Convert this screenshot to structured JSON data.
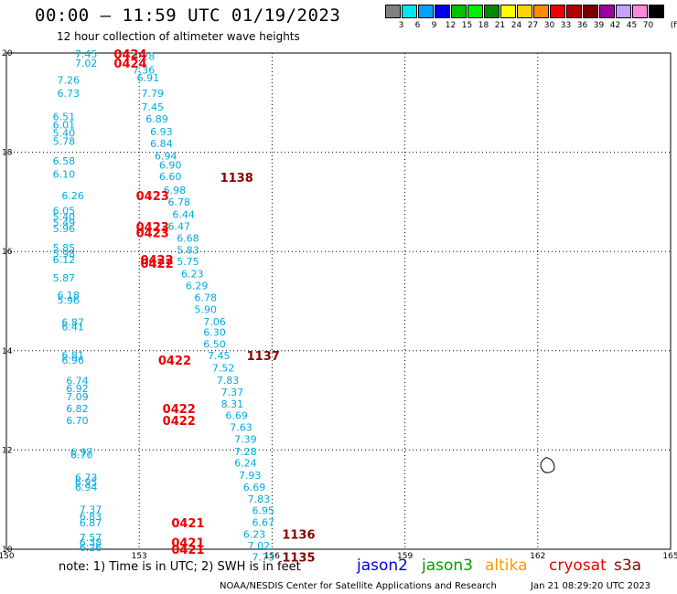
{
  "header": {
    "title": "00:00 – 11:59 UTC 01/19/2023",
    "subtitle": "12 hour collection of altimeter wave heights"
  },
  "scale": {
    "unit": "(ft)",
    "bins": [
      {
        "label": "3",
        "color": "#808080"
      },
      {
        "label": "6",
        "color": "#00e5ee"
      },
      {
        "label": "9",
        "color": "#00a2ff"
      },
      {
        "label": "12",
        "color": "#0000ee"
      },
      {
        "label": "15",
        "color": "#00c000"
      },
      {
        "label": "18",
        "color": "#00ee00"
      },
      {
        "label": "21",
        "color": "#008800"
      },
      {
        "label": "24",
        "color": "#ffff00"
      },
      {
        "label": "27",
        "color": "#ffd200"
      },
      {
        "label": "30",
        "color": "#ff8c00"
      },
      {
        "label": "33",
        "color": "#ee0000"
      },
      {
        "label": "36",
        "color": "#b00000"
      },
      {
        "label": "39",
        "color": "#7a0000"
      },
      {
        "label": "42",
        "color": "#a000a0"
      },
      {
        "label": "45",
        "color": "#c8a0ff"
      },
      {
        "label": "70",
        "color": "#ff88d8"
      },
      {
        "label": "",
        "color": "#000000"
      }
    ]
  },
  "footer": {
    "note": "note:  1) Time is in UTC;  2) SWH is in feet",
    "satellites": [
      {
        "name": "jason2",
        "color": "#0000dd"
      },
      {
        "name": "jason3",
        "color": "#00a000"
      },
      {
        "name": "altika",
        "color": "#ff9900"
      },
      {
        "name": "cryosat",
        "color": "#ee0000"
      },
      {
        "name": "s3a",
        "color": "#880000"
      }
    ],
    "credit": "NOAA/NESDIS Center for Satellite Applications and Research",
    "timestamp": "Jan 21 08:29:20 UTC 2023"
  },
  "chart_data": {
    "type": "scatter",
    "xlim": [
      150,
      165
    ],
    "ylim": [
      10,
      20
    ],
    "x_ticks": [
      "150",
      "153",
      "156",
      "159",
      "162",
      "165"
    ],
    "y_ticks": [
      "10",
      "12",
      "14",
      "16",
      "18",
      "20"
    ],
    "grid": true,
    "colors": {
      "wave": "#00aadd",
      "cryosat_time": "#ee0000",
      "s3a_time": "#880000"
    },
    "wave_heights": [
      {
        "x": 151.8,
        "y": 19.98,
        "label": "7.45"
      },
      {
        "x": 151.8,
        "y": 19.8,
        "label": "7.02"
      },
      {
        "x": 153.1,
        "y": 19.94,
        "label": "7.28"
      },
      {
        "x": 153.1,
        "y": 19.66,
        "label": "7.36"
      },
      {
        "x": 151.4,
        "y": 19.46,
        "label": "7.26"
      },
      {
        "x": 151.4,
        "y": 19.19,
        "label": "6.73"
      },
      {
        "x": 153.2,
        "y": 19.5,
        "label": "6.91"
      },
      {
        "x": 153.3,
        "y": 19.19,
        "label": "7.79"
      },
      {
        "x": 153.3,
        "y": 18.91,
        "label": "7.45"
      },
      {
        "x": 151.3,
        "y": 18.72,
        "label": "6.51"
      },
      {
        "x": 151.3,
        "y": 18.55,
        "label": "6.01"
      },
      {
        "x": 151.3,
        "y": 18.39,
        "label": "5.40"
      },
      {
        "x": 151.3,
        "y": 18.22,
        "label": "5.78"
      },
      {
        "x": 153.4,
        "y": 18.67,
        "label": "6.89"
      },
      {
        "x": 153.5,
        "y": 18.42,
        "label": "6.93"
      },
      {
        "x": 153.5,
        "y": 18.18,
        "label": "6.84"
      },
      {
        "x": 153.6,
        "y": 17.93,
        "label": "6.94"
      },
      {
        "x": 151.3,
        "y": 17.83,
        "label": "6.58"
      },
      {
        "x": 151.3,
        "y": 17.56,
        "label": "6.10"
      },
      {
        "x": 153.7,
        "y": 17.74,
        "label": "6.90"
      },
      {
        "x": 153.7,
        "y": 17.51,
        "label": "6.60"
      },
      {
        "x": 153.8,
        "y": 17.24,
        "label": "6.98"
      },
      {
        "x": 153.9,
        "y": 17.0,
        "label": "6.78"
      },
      {
        "x": 151.5,
        "y": 17.13,
        "label": "6.26"
      },
      {
        "x": 151.3,
        "y": 16.82,
        "label": "6.05"
      },
      {
        "x": 151.3,
        "y": 16.7,
        "label": "5.40"
      },
      {
        "x": 151.3,
        "y": 16.58,
        "label": "5.49"
      },
      {
        "x": 151.3,
        "y": 16.46,
        "label": "5.96"
      },
      {
        "x": 154.0,
        "y": 16.75,
        "label": "6.44"
      },
      {
        "x": 153.9,
        "y": 16.51,
        "label": "6.47"
      },
      {
        "x": 154.1,
        "y": 16.27,
        "label": "6.68"
      },
      {
        "x": 154.1,
        "y": 16.03,
        "label": "5.83"
      },
      {
        "x": 151.3,
        "y": 16.08,
        "label": "5.85"
      },
      {
        "x": 151.3,
        "y": 15.96,
        "label": "5.98"
      },
      {
        "x": 151.3,
        "y": 15.84,
        "label": "6.12"
      },
      {
        "x": 154.1,
        "y": 15.8,
        "label": "5.75"
      },
      {
        "x": 154.2,
        "y": 15.55,
        "label": "6.23"
      },
      {
        "x": 151.3,
        "y": 15.47,
        "label": "5.87"
      },
      {
        "x": 154.3,
        "y": 15.31,
        "label": "6.29"
      },
      {
        "x": 151.4,
        "y": 15.12,
        "label": "6.18"
      },
      {
        "x": 151.4,
        "y": 15.02,
        "label": "5.96"
      },
      {
        "x": 154.5,
        "y": 15.07,
        "label": "6.78"
      },
      {
        "x": 154.5,
        "y": 14.83,
        "label": "5.90"
      },
      {
        "x": 154.7,
        "y": 14.59,
        "label": "7.06"
      },
      {
        "x": 151.5,
        "y": 14.58,
        "label": "6.87"
      },
      {
        "x": 151.5,
        "y": 14.48,
        "label": "6.41"
      },
      {
        "x": 154.7,
        "y": 14.37,
        "label": "6.30"
      },
      {
        "x": 154.7,
        "y": 14.13,
        "label": "6.50"
      },
      {
        "x": 154.8,
        "y": 13.9,
        "label": "7.45"
      },
      {
        "x": 151.5,
        "y": 13.91,
        "label": "6.81"
      },
      {
        "x": 151.5,
        "y": 13.81,
        "label": "6.96"
      },
      {
        "x": 154.9,
        "y": 13.66,
        "label": "7.52"
      },
      {
        "x": 155.0,
        "y": 13.41,
        "label": "7.83"
      },
      {
        "x": 151.6,
        "y": 13.4,
        "label": "6.74"
      },
      {
        "x": 151.6,
        "y": 13.24,
        "label": "6.92"
      },
      {
        "x": 151.6,
        "y": 13.08,
        "label": "7.09"
      },
      {
        "x": 155.1,
        "y": 13.17,
        "label": "7.37"
      },
      {
        "x": 155.1,
        "y": 12.93,
        "label": "8.31"
      },
      {
        "x": 151.6,
        "y": 12.84,
        "label": "6.82"
      },
      {
        "x": 151.6,
        "y": 12.6,
        "label": "6.70"
      },
      {
        "x": 155.2,
        "y": 12.7,
        "label": "6.69"
      },
      {
        "x": 155.3,
        "y": 12.46,
        "label": "7.63"
      },
      {
        "x": 155.4,
        "y": 12.22,
        "label": "7.39"
      },
      {
        "x": 155.4,
        "y": 11.97,
        "label": "7.28"
      },
      {
        "x": 151.7,
        "y": 11.96,
        "label": "6.97"
      },
      {
        "x": 151.7,
        "y": 11.91,
        "label": "6.70"
      },
      {
        "x": 155.4,
        "y": 11.74,
        "label": "6.24"
      },
      {
        "x": 155.5,
        "y": 11.49,
        "label": "7.93"
      },
      {
        "x": 151.8,
        "y": 11.45,
        "label": "6.73"
      },
      {
        "x": 151.8,
        "y": 11.35,
        "label": "6.95"
      },
      {
        "x": 151.8,
        "y": 11.25,
        "label": "6.94"
      },
      {
        "x": 155.6,
        "y": 11.25,
        "label": "6.69"
      },
      {
        "x": 155.7,
        "y": 11.01,
        "label": "7.83"
      },
      {
        "x": 151.9,
        "y": 10.8,
        "label": "7.37"
      },
      {
        "x": 151.9,
        "y": 10.66,
        "label": "6.83"
      },
      {
        "x": 151.9,
        "y": 10.53,
        "label": "6.87"
      },
      {
        "x": 155.8,
        "y": 10.78,
        "label": "6.95"
      },
      {
        "x": 155.8,
        "y": 10.54,
        "label": "6.67"
      },
      {
        "x": 155.6,
        "y": 10.3,
        "label": "6.23"
      },
      {
        "x": 151.9,
        "y": 10.24,
        "label": "7.57"
      },
      {
        "x": 151.9,
        "y": 10.14,
        "label": "6.38"
      },
      {
        "x": 151.9,
        "y": 10.04,
        "label": "6.26"
      },
      {
        "x": 155.7,
        "y": 10.07,
        "label": "7.02"
      },
      {
        "x": 155.8,
        "y": 9.84,
        "label": "7.73"
      }
    ],
    "pass_times": [
      {
        "x": 152.8,
        "y": 19.98,
        "label": "0424",
        "satellite": "cryosat"
      },
      {
        "x": 152.8,
        "y": 19.8,
        "label": "0424",
        "satellite": "cryosat"
      },
      {
        "x": 155.2,
        "y": 17.5,
        "label": "1138",
        "satellite": "s3a"
      },
      {
        "x": 153.3,
        "y": 17.13,
        "label": "0423",
        "satellite": "cryosat"
      },
      {
        "x": 153.3,
        "y": 16.5,
        "label": "0423",
        "satellite": "cryosat"
      },
      {
        "x": 153.3,
        "y": 16.38,
        "label": "0423",
        "satellite": "cryosat"
      },
      {
        "x": 153.4,
        "y": 15.84,
        "label": "0422",
        "satellite": "cryosat"
      },
      {
        "x": 153.4,
        "y": 15.76,
        "label": "0422",
        "satellite": "cryosat"
      },
      {
        "x": 153.8,
        "y": 13.81,
        "label": "0422",
        "satellite": "cryosat"
      },
      {
        "x": 155.8,
        "y": 13.9,
        "label": "1137",
        "satellite": "s3a"
      },
      {
        "x": 153.9,
        "y": 12.84,
        "label": "0422",
        "satellite": "cryosat"
      },
      {
        "x": 153.9,
        "y": 12.6,
        "label": "0422",
        "satellite": "cryosat"
      },
      {
        "x": 154.1,
        "y": 10.53,
        "label": "0421",
        "satellite": "cryosat"
      },
      {
        "x": 154.1,
        "y": 10.14,
        "label": "0421",
        "satellite": "cryosat"
      },
      {
        "x": 154.1,
        "y": 10.0,
        "label": "0421",
        "satellite": "cryosat"
      },
      {
        "x": 156.6,
        "y": 10.3,
        "label": "1136",
        "satellite": "s3a"
      },
      {
        "x": 156.6,
        "y": 9.84,
        "label": "1135",
        "satellite": "s3a"
      }
    ]
  }
}
